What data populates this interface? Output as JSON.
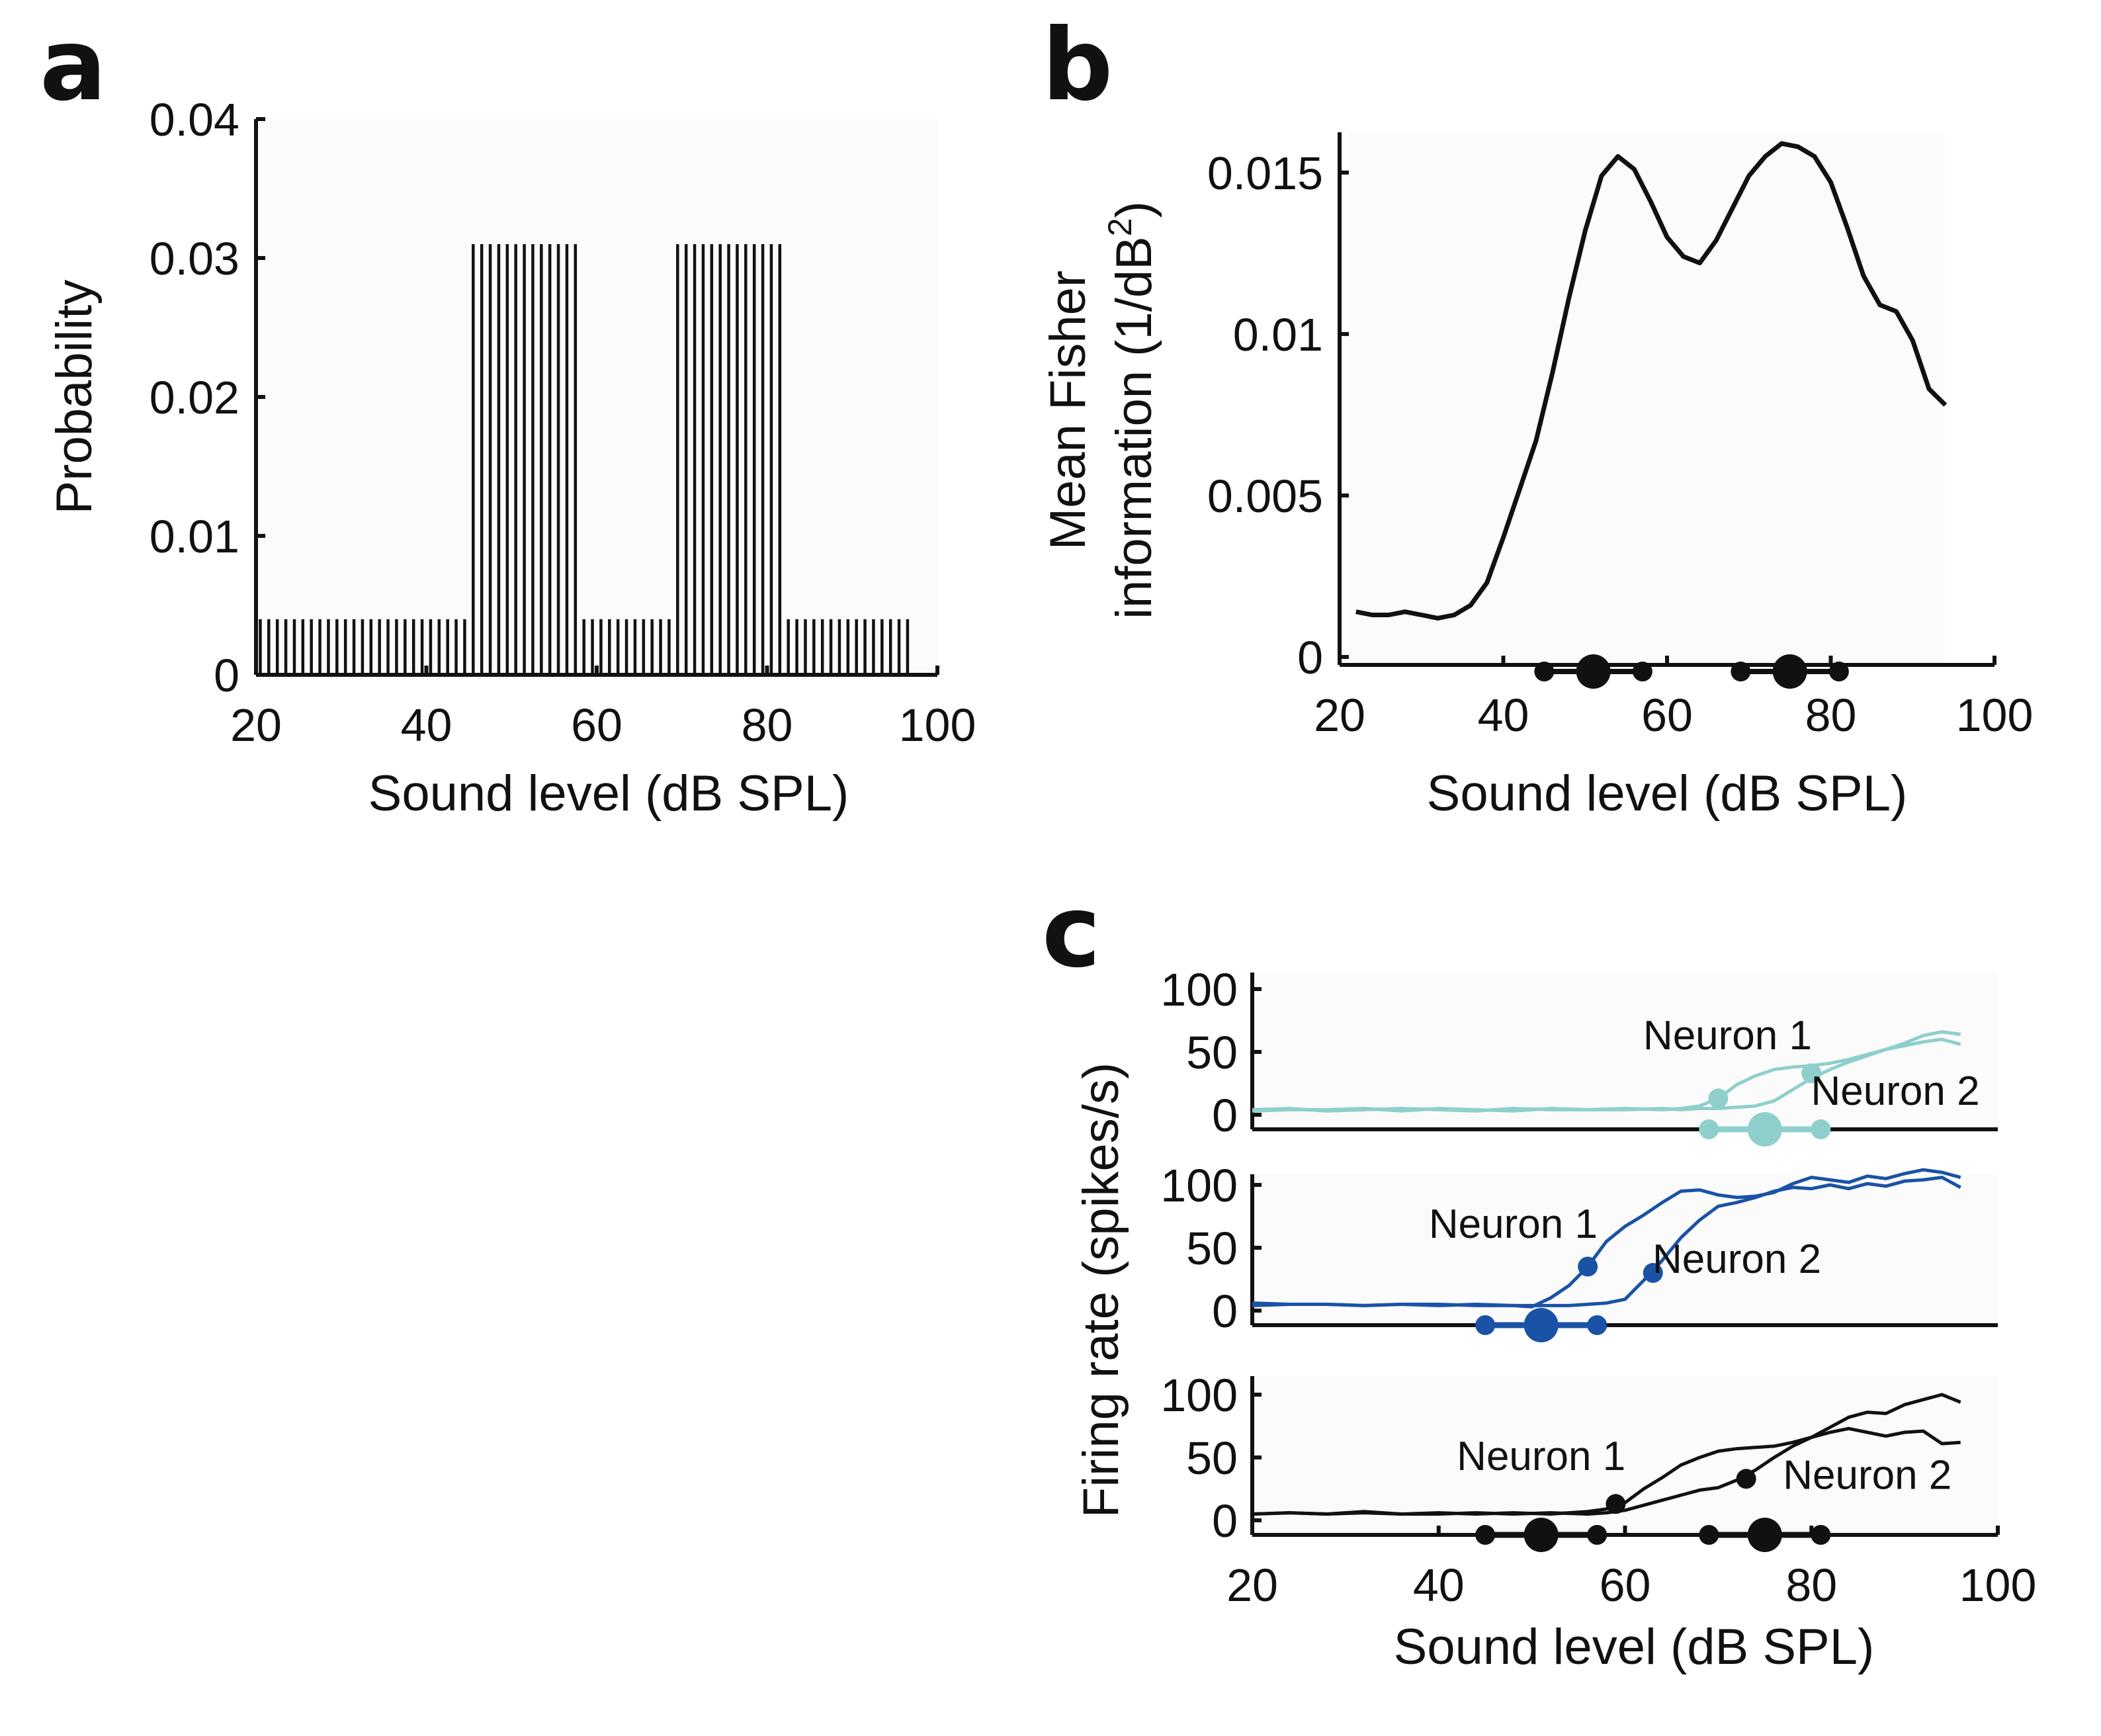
{
  "panel_labels": [
    "a",
    "b",
    "c"
  ],
  "chart_data": [
    {
      "panel": "a",
      "type": "bar",
      "xlabel": "Sound level (dB SPL)",
      "ylabel": "Probability",
      "xlim": [
        20,
        100
      ],
      "ylim": [
        0,
        0.04
      ],
      "xticks": [
        "20",
        "40",
        "60",
        "80",
        "100"
      ],
      "yticks": [
        "0",
        "0.01",
        "0.02",
        "0.03",
        "0.04"
      ],
      "bar_x": [
        20,
        21,
        22,
        23,
        24,
        25,
        26,
        27,
        28,
        29,
        30,
        31,
        32,
        33,
        34,
        35,
        36,
        37,
        38,
        39,
        40,
        41,
        42,
        43,
        44,
        45,
        46,
        47,
        48,
        49,
        50,
        51,
        52,
        53,
        54,
        55,
        56,
        57,
        58,
        59,
        60,
        61,
        62,
        63,
        64,
        65,
        66,
        67,
        68,
        69,
        70,
        71,
        72,
        73,
        74,
        75,
        76,
        77,
        78,
        79,
        80,
        81,
        82,
        83,
        84,
        85,
        86,
        87,
        88,
        89,
        90,
        91,
        92,
        93,
        94,
        95,
        96
      ],
      "values": [
        0.004,
        0.004,
        0.004,
        0.004,
        0.004,
        0.004,
        0.004,
        0.004,
        0.004,
        0.004,
        0.004,
        0.004,
        0.004,
        0.004,
        0.004,
        0.004,
        0.004,
        0.004,
        0.004,
        0.004,
        0.004,
        0.004,
        0.004,
        0.004,
        0.004,
        0.031,
        0.031,
        0.031,
        0.031,
        0.031,
        0.031,
        0.031,
        0.031,
        0.031,
        0.031,
        0.031,
        0.031,
        0.031,
        0.004,
        0.004,
        0.004,
        0.004,
        0.004,
        0.004,
        0.004,
        0.004,
        0.004,
        0.004,
        0.004,
        0.031,
        0.031,
        0.031,
        0.031,
        0.031,
        0.031,
        0.031,
        0.031,
        0.031,
        0.031,
        0.031,
        0.031,
        0.031,
        0.004,
        0.004,
        0.004,
        0.004,
        0.004,
        0.004,
        0.004,
        0.004,
        0.004,
        0.004,
        0.004,
        0.004,
        0.004,
        0.004,
        0.004
      ],
      "bar_color": "#111111"
    },
    {
      "panel": "b",
      "type": "line",
      "xlabel": "Sound level (dB SPL)",
      "ylabel_line1": "Mean Fisher",
      "ylabel_line2": "information (1/dB",
      "ylabel_sup": "2",
      "ylabel_close": ")",
      "xlim": [
        20,
        100
      ],
      "ylim": [
        0,
        0.016
      ],
      "xticks": [
        "20",
        "40",
        "60",
        "80",
        "100"
      ],
      "yticks": [
        "0",
        "0.005",
        "0.01",
        "0.015"
      ],
      "x": [
        22,
        24,
        26,
        28,
        30,
        32,
        34,
        36,
        38,
        40,
        42,
        44,
        46,
        48,
        50,
        52,
        54,
        56,
        58,
        60,
        62,
        64,
        66,
        68,
        70,
        72,
        74,
        76,
        78,
        80,
        82,
        84,
        86,
        88,
        90,
        92,
        94
      ],
      "y": [
        0.0014,
        0.0013,
        0.0013,
        0.0014,
        0.0013,
        0.0012,
        0.0013,
        0.0016,
        0.0023,
        0.0037,
        0.0052,
        0.0067,
        0.0088,
        0.0111,
        0.0132,
        0.0149,
        0.0155,
        0.0151,
        0.0141,
        0.013,
        0.0124,
        0.0122,
        0.0129,
        0.0139,
        0.0149,
        0.0155,
        0.0159,
        0.0158,
        0.0155,
        0.0147,
        0.0133,
        0.0118,
        0.0109,
        0.0107,
        0.0098,
        0.0083,
        0.0078
      ],
      "line_color": "#111111",
      "markers": [
        {
          "x": 45,
          "size": "small"
        },
        {
          "x": 51,
          "size": "large"
        },
        {
          "x": 57,
          "size": "small"
        },
        {
          "x": 69,
          "size": "small"
        },
        {
          "x": 75,
          "size": "large"
        },
        {
          "x": 81,
          "size": "small"
        }
      ]
    },
    {
      "panel": "c",
      "type": "line",
      "xlabel": "Sound level (dB SPL)",
      "ylabel": "Firing rate (spikes/s)",
      "xlim": [
        20,
        100
      ],
      "xticks": [
        "20",
        "40",
        "60",
        "80",
        "100"
      ],
      "subplots": [
        {
          "color": "#8ecfcb",
          "yticks": [
            "0",
            "50",
            "100"
          ],
          "ylim": [
            0,
            100
          ],
          "x": [
            20,
            24,
            28,
            32,
            36,
            40,
            44,
            48,
            52,
            56,
            60,
            64,
            66,
            68,
            70,
            72,
            74,
            76,
            78,
            80,
            82,
            84,
            86,
            88,
            90,
            92,
            94,
            96
          ],
          "series": [
            {
              "name": "Neuron 1",
              "values": [
                4,
                5,
                3,
                4,
                5,
                4,
                3,
                5,
                4,
                4,
                5,
                4,
                5,
                7,
                13,
                24,
                31,
                36,
                38,
                39,
                41,
                44,
                48,
                52,
                57,
                63,
                66,
                64
              ]
            },
            {
              "name": "Neuron 2",
              "values": [
                3,
                4,
                4,
                5,
                3,
                5,
                4,
                3,
                5,
                4,
                4,
                5,
                4,
                5,
                5,
                6,
                7,
                11,
                20,
                29,
                36,
                42,
                47,
                52,
                55,
                58,
                60,
                56
              ]
            }
          ],
          "labels": [
            {
              "text": "Neuron 1",
              "x": 71,
              "y": 52
            },
            {
              "text": "Neuron 2",
              "x": 89,
              "y": 8
            }
          ],
          "points": [
            {
              "x": 70,
              "y": 13
            },
            {
              "x": 80,
              "y": 33
            }
          ],
          "markers": [
            {
              "x": 69,
              "size": "small"
            },
            {
              "x": 75,
              "size": "large"
            },
            {
              "x": 81,
              "size": "small"
            }
          ]
        },
        {
          "color": "#1a52a6",
          "yticks": [
            "0",
            "50",
            "100"
          ],
          "ylim": [
            0,
            100
          ],
          "x": [
            20,
            24,
            28,
            32,
            36,
            40,
            44,
            48,
            50,
            52,
            54,
            56,
            58,
            60,
            62,
            64,
            66,
            68,
            70,
            72,
            74,
            76,
            78,
            80,
            82,
            84,
            86,
            88,
            90,
            92,
            94,
            96
          ],
          "series": [
            {
              "name": "Neuron 1",
              "values": [
                6,
                5,
                5,
                4,
                5,
                4,
                5,
                4,
                3,
                10,
                20,
                35,
                55,
                67,
                76,
                86,
                95,
                96,
                92,
                90,
                91,
                94,
                101,
                106,
                104,
                102,
                107,
                105,
                109,
                112,
                110,
                106
              ]
            },
            {
              "name": "Neuron 2",
              "values": [
                4,
                5,
                5,
                4,
                5,
                5,
                4,
                4,
                4,
                4,
                4,
                5,
                6,
                9,
                24,
                40,
                58,
                72,
                83,
                86,
                90,
                95,
                98,
                97,
                100,
                97,
                101,
                99,
                103,
                104,
                106,
                98
              ]
            }
          ],
          "labels": [
            {
              "text": "Neuron 1",
              "x": 48,
              "y": 58
            },
            {
              "text": "Neuron 2",
              "x": 72,
              "y": 30
            }
          ],
          "points": [
            {
              "x": 56,
              "y": 35
            },
            {
              "x": 63,
              "y": 30
            }
          ],
          "markers": [
            {
              "x": 45,
              "size": "small"
            },
            {
              "x": 51,
              "size": "large"
            },
            {
              "x": 57,
              "size": "small"
            }
          ]
        },
        {
          "color": "#111111",
          "yticks": [
            "0",
            "50",
            "100"
          ],
          "ylim": [
            0,
            100
          ],
          "x": [
            20,
            24,
            28,
            32,
            36,
            40,
            44,
            48,
            52,
            56,
            58,
            60,
            62,
            64,
            66,
            68,
            70,
            72,
            74,
            76,
            78,
            80,
            82,
            84,
            86,
            88,
            90,
            92,
            94,
            96
          ],
          "series": [
            {
              "name": "Neuron 1",
              "values": [
                5,
                6,
                5,
                7,
                5,
                6,
                5,
                6,
                5,
                7,
                9,
                14,
                25,
                34,
                44,
                50,
                55,
                57,
                58,
                59,
                62,
                66,
                70,
                73,
                70,
                67,
                70,
                71,
                61,
                62
              ]
            },
            {
              "name": "Neuron 2",
              "values": [
                5,
                6,
                5,
                6,
                5,
                5,
                6,
                5,
                6,
                5,
                6,
                8,
                12,
                16,
                20,
                24,
                26,
                32,
                40,
                50,
                59,
                66,
                74,
                82,
                86,
                85,
                92,
                96,
                100,
                94
              ]
            }
          ],
          "labels": [
            {
              "text": "Neuron 1",
              "x": 51,
              "y": 40
            },
            {
              "text": "Neuron 2",
              "x": 86,
              "y": 25
            }
          ],
          "points": [
            {
              "x": 59,
              "y": 13
            },
            {
              "x": 73,
              "y": 33
            }
          ],
          "markers": [
            {
              "x": 45,
              "size": "small"
            },
            {
              "x": 51,
              "size": "large"
            },
            {
              "x": 57,
              "size": "small"
            },
            {
              "x": 69,
              "size": "small"
            },
            {
              "x": 75,
              "size": "large"
            },
            {
              "x": 81,
              "size": "small"
            }
          ]
        }
      ]
    }
  ]
}
